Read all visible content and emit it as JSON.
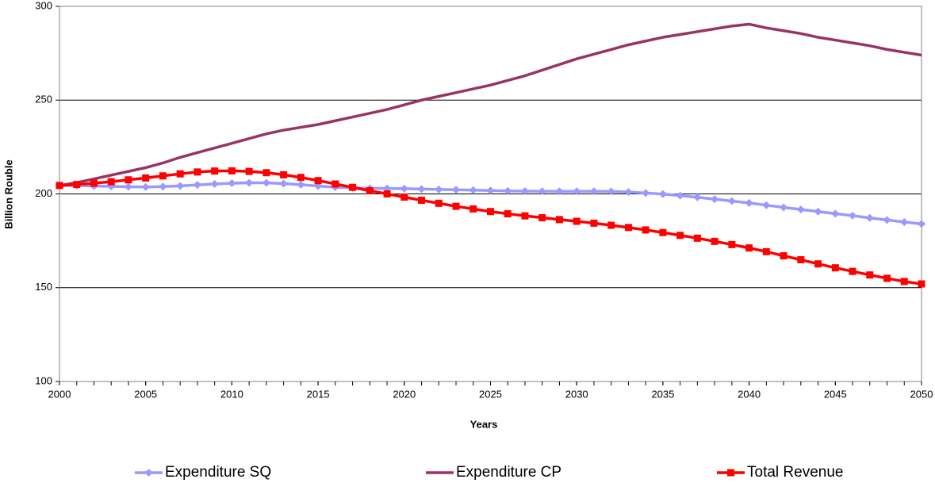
{
  "chart_data": {
    "type": "line",
    "xlabel": "Years",
    "ylabel": "Billion Rouble",
    "x": [
      2000,
      2001,
      2002,
      2003,
      2004,
      2005,
      2006,
      2007,
      2008,
      2009,
      2010,
      2011,
      2012,
      2013,
      2014,
      2015,
      2016,
      2017,
      2018,
      2019,
      2020,
      2021,
      2022,
      2023,
      2024,
      2025,
      2026,
      2027,
      2028,
      2029,
      2030,
      2031,
      2032,
      2033,
      2034,
      2035,
      2036,
      2037,
      2038,
      2039,
      2040,
      2041,
      2042,
      2043,
      2044,
      2045,
      2046,
      2047,
      2048,
      2049,
      2050
    ],
    "xlim": [
      2000,
      2050
    ],
    "xticks": [
      2000,
      2005,
      2010,
      2015,
      2020,
      2025,
      2030,
      2035,
      2040,
      2045,
      2050
    ],
    "ylim": [
      100,
      300
    ],
    "yticks": [
      100,
      150,
      200,
      250,
      300
    ],
    "grid": true,
    "legend": "bottom",
    "series": [
      {
        "name": "Expenditure SQ",
        "color": "#9999ff",
        "marker": "diamond",
        "values": [
          204.5,
          204.5,
          204.2,
          204.0,
          203.8,
          203.7,
          203.9,
          204.3,
          204.8,
          205.3,
          205.7,
          205.9,
          205.9,
          205.5,
          204.9,
          204.2,
          203.6,
          203.2,
          203.0,
          202.9,
          202.8,
          202.6,
          202.4,
          202.2,
          202.0,
          201.8,
          201.6,
          201.5,
          201.4,
          201.4,
          201.4,
          201.4,
          201.3,
          201.0,
          200.5,
          199.9,
          199.1,
          198.2,
          197.2,
          196.2,
          195.2,
          194.0,
          192.8,
          191.7,
          190.6,
          189.5,
          188.4,
          187.2,
          186.1,
          185.0,
          184.0
        ]
      },
      {
        "name": "Expenditure CP",
        "color": "#993366",
        "marker": "none",
        "values": [
          204.5,
          206,
          208,
          210,
          212,
          214,
          216.5,
          219.5,
          222,
          224.5,
          227,
          229.5,
          232,
          234,
          235.5,
          237,
          239,
          241,
          243,
          245,
          247.5,
          250,
          252,
          254,
          256,
          258,
          260.5,
          263,
          266,
          269,
          272,
          274.5,
          277,
          279.5,
          281.5,
          283.5,
          285,
          286.5,
          288,
          289.5,
          290.5,
          288.5,
          287,
          285.5,
          283.5,
          282,
          280.5,
          279,
          277,
          275.5,
          274
        ]
      },
      {
        "name": "Total Revenue",
        "color": "#ff0000",
        "marker": "square",
        "values": [
          204.5,
          205,
          205.7,
          206.5,
          207.5,
          208.5,
          209.6,
          210.7,
          211.7,
          212.2,
          212.3,
          212,
          211.3,
          210.2,
          208.8,
          207.1,
          205.3,
          203.5,
          201.7,
          200,
          198.3,
          196.6,
          195,
          193.4,
          192,
          190.6,
          189.4,
          188.3,
          187.3,
          186.3,
          185.4,
          184.4,
          183.3,
          182.1,
          180.8,
          179.4,
          177.9,
          176.4,
          174.7,
          173,
          171.2,
          169.2,
          167,
          164.9,
          162.7,
          160.6,
          158.7,
          156.8,
          155,
          153.3,
          152
        ]
      }
    ]
  }
}
